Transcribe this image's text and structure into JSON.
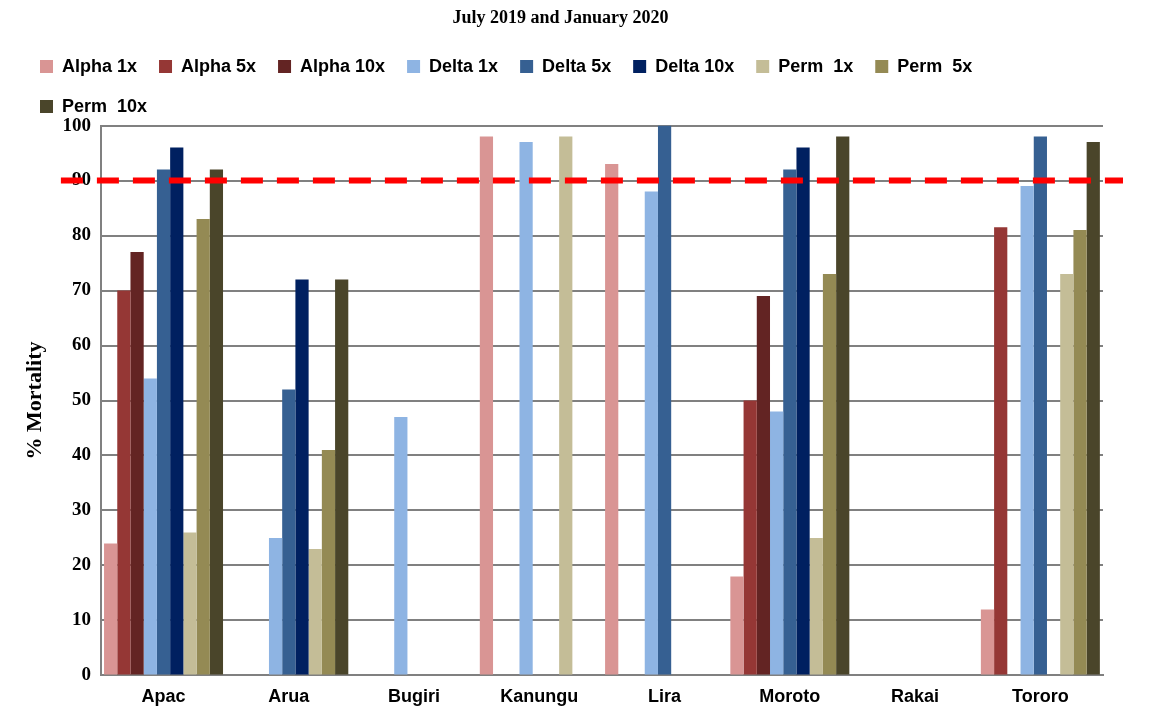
{
  "chart_data": {
    "type": "bar",
    "title": "July 2019 and January 2020",
    "ylabel": "% Mortality",
    "categories": [
      "Apac",
      "Arua",
      "Bugiri",
      "Kanungu",
      "Lira",
      "Moroto",
      "Rakai",
      "Tororo"
    ],
    "series": [
      {
        "name": "Alpha 1x",
        "color": "#d99594",
        "values": [
          24,
          null,
          null,
          98,
          93,
          18,
          null,
          12
        ]
      },
      {
        "name": "Alpha 5x",
        "color": "#953735",
        "values": [
          70,
          null,
          null,
          null,
          null,
          50,
          null,
          81.5
        ]
      },
      {
        "name": "Alpha 10x",
        "color": "#632423",
        "values": [
          77,
          null,
          null,
          null,
          null,
          69,
          null,
          null
        ]
      },
      {
        "name": "Delta 1x",
        "color": "#8eb4e3",
        "values": [
          54,
          25,
          47,
          97,
          88,
          48,
          null,
          89
        ]
      },
      {
        "name": "Delta 5x",
        "color": "#366092",
        "values": [
          92,
          52,
          null,
          null,
          100,
          92,
          null,
          98
        ]
      },
      {
        "name": "Delta 10x",
        "color": "#002060",
        "values": [
          96,
          72,
          null,
          null,
          null,
          96,
          null,
          null
        ]
      },
      {
        "name": "Perm  1x",
        "color": "#c4bd97",
        "values": [
          26,
          23,
          null,
          98,
          null,
          25,
          null,
          73
        ]
      },
      {
        "name": "Perm  5x",
        "color": "#948a54",
        "values": [
          83,
          41,
          null,
          null,
          null,
          73,
          null,
          81
        ]
      },
      {
        "name": "Perm  10x",
        "color": "#4a452a",
        "values": [
          92,
          72,
          null,
          null,
          null,
          98,
          null,
          97
        ]
      }
    ],
    "ylim": [
      0,
      100
    ],
    "yticks": [
      0,
      10,
      20,
      30,
      40,
      50,
      60,
      70,
      80,
      90,
      100
    ],
    "grid": "y",
    "legend": "top",
    "ref_lines": [
      {
        "axis": "y",
        "value": 90,
        "color": "#ff0000",
        "line_style": "dashed"
      }
    ]
  }
}
